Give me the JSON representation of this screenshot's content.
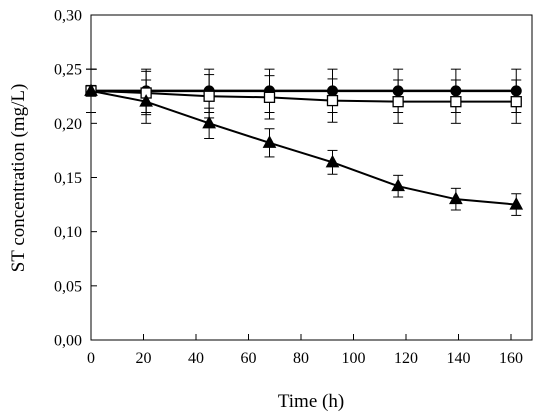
{
  "chart_data": {
    "type": "line",
    "title": "",
    "xlabel": "Time (h)",
    "ylabel": "ST concentration (mg/L)",
    "xlim": [
      0,
      168
    ],
    "ylim": [
      0,
      0.3
    ],
    "x_ticks": [
      0,
      20,
      40,
      60,
      80,
      100,
      120,
      140,
      160
    ],
    "x_tick_labels": [
      "0",
      "20",
      "40",
      "60",
      "80",
      "100",
      "120",
      "140",
      "160"
    ],
    "y_ticks": [
      0,
      0.05,
      0.1,
      0.15,
      0.2,
      0.25,
      0.3
    ],
    "y_tick_labels": [
      "0,00",
      "0,05",
      "0,10",
      "0,15",
      "0,20",
      "0,25",
      "0,30"
    ],
    "grid": false,
    "legend": "none",
    "series": [
      {
        "marker": "circle-filled",
        "color": "#000000",
        "x": [
          0,
          21,
          45,
          68,
          92,
          117,
          139,
          162
        ],
        "y": [
          0.23,
          0.23,
          0.23,
          0.23,
          0.23,
          0.23,
          0.23,
          0.23
        ],
        "error": [
          0.02,
          0.02,
          0.02,
          0.02,
          0.02,
          0.02,
          0.02,
          0.02
        ]
      },
      {
        "marker": "square-open",
        "color": "#000000",
        "x": [
          0,
          21,
          45,
          68,
          92,
          117,
          139,
          162
        ],
        "y": [
          0.23,
          0.228,
          0.225,
          0.224,
          0.221,
          0.22,
          0.22,
          0.22
        ],
        "error": [
          0.02,
          0.02,
          0.02,
          0.02,
          0.02,
          0.02,
          0.02,
          0.02
        ]
      },
      {
        "marker": "triangle-filled",
        "color": "#000000",
        "x": [
          0,
          21,
          45,
          68,
          92,
          117,
          139,
          162
        ],
        "y": [
          0.23,
          0.22,
          0.2,
          0.182,
          0.164,
          0.142,
          0.13,
          0.125
        ],
        "error": [
          0.005,
          0.02,
          0.014,
          0.013,
          0.011,
          0.01,
          0.01,
          0.01
        ]
      }
    ]
  }
}
